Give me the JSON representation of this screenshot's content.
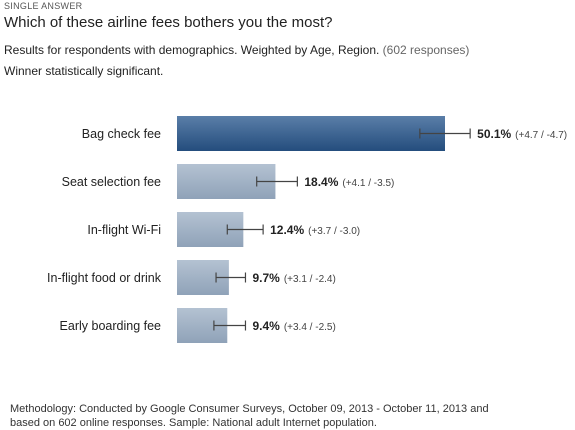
{
  "header": {
    "question_type": "SINGLE ANSWER",
    "question": "Which of these airline fees bothers you the most?",
    "results_text": "Results for respondents with demographics. Weighted by Age, Region.",
    "responses_text": "(602 responses)",
    "winner_text": "Winner statistically significant."
  },
  "footer": {
    "methodology_line1": "Methodology: Conducted by Google Consumer Surveys, October 09, 2013 - October 11, 2013 and",
    "methodology_line2": "based on 602 online responses. Sample: National adult Internet population."
  },
  "colors": {
    "winner_bar_top": "#5a7ea8",
    "winner_bar_bottom": "#244d7d",
    "bar_top": "#b4c2d2",
    "bar_bottom": "#8fa2b8",
    "error_bar": "#444444"
  },
  "chart_data": {
    "type": "bar",
    "orientation": "horizontal",
    "categories": [
      "Bag check fee",
      "Seat selection fee",
      "In-flight Wi-Fi",
      "In-flight food or drink",
      "Early boarding fee"
    ],
    "values": [
      50.1,
      18.4,
      12.4,
      9.7,
      9.4
    ],
    "value_labels": [
      "50.1%",
      "18.4%",
      "12.4%",
      "9.7%",
      "9.4%"
    ],
    "error_plus": [
      4.7,
      4.1,
      3.7,
      3.1,
      3.4
    ],
    "error_minus": [
      4.7,
      3.5,
      3.0,
      2.4,
      2.5
    ],
    "error_labels": [
      "(+4.7 / -4.7)",
      "(+4.1 / -3.5)",
      "(+3.7 / -3.0)",
      "(+3.1 / -2.4)",
      "(+3.4 / -2.5)"
    ],
    "winner_index": 0,
    "title": "",
    "xlabel": "",
    "ylabel": "",
    "grid": false,
    "legend": "none"
  }
}
